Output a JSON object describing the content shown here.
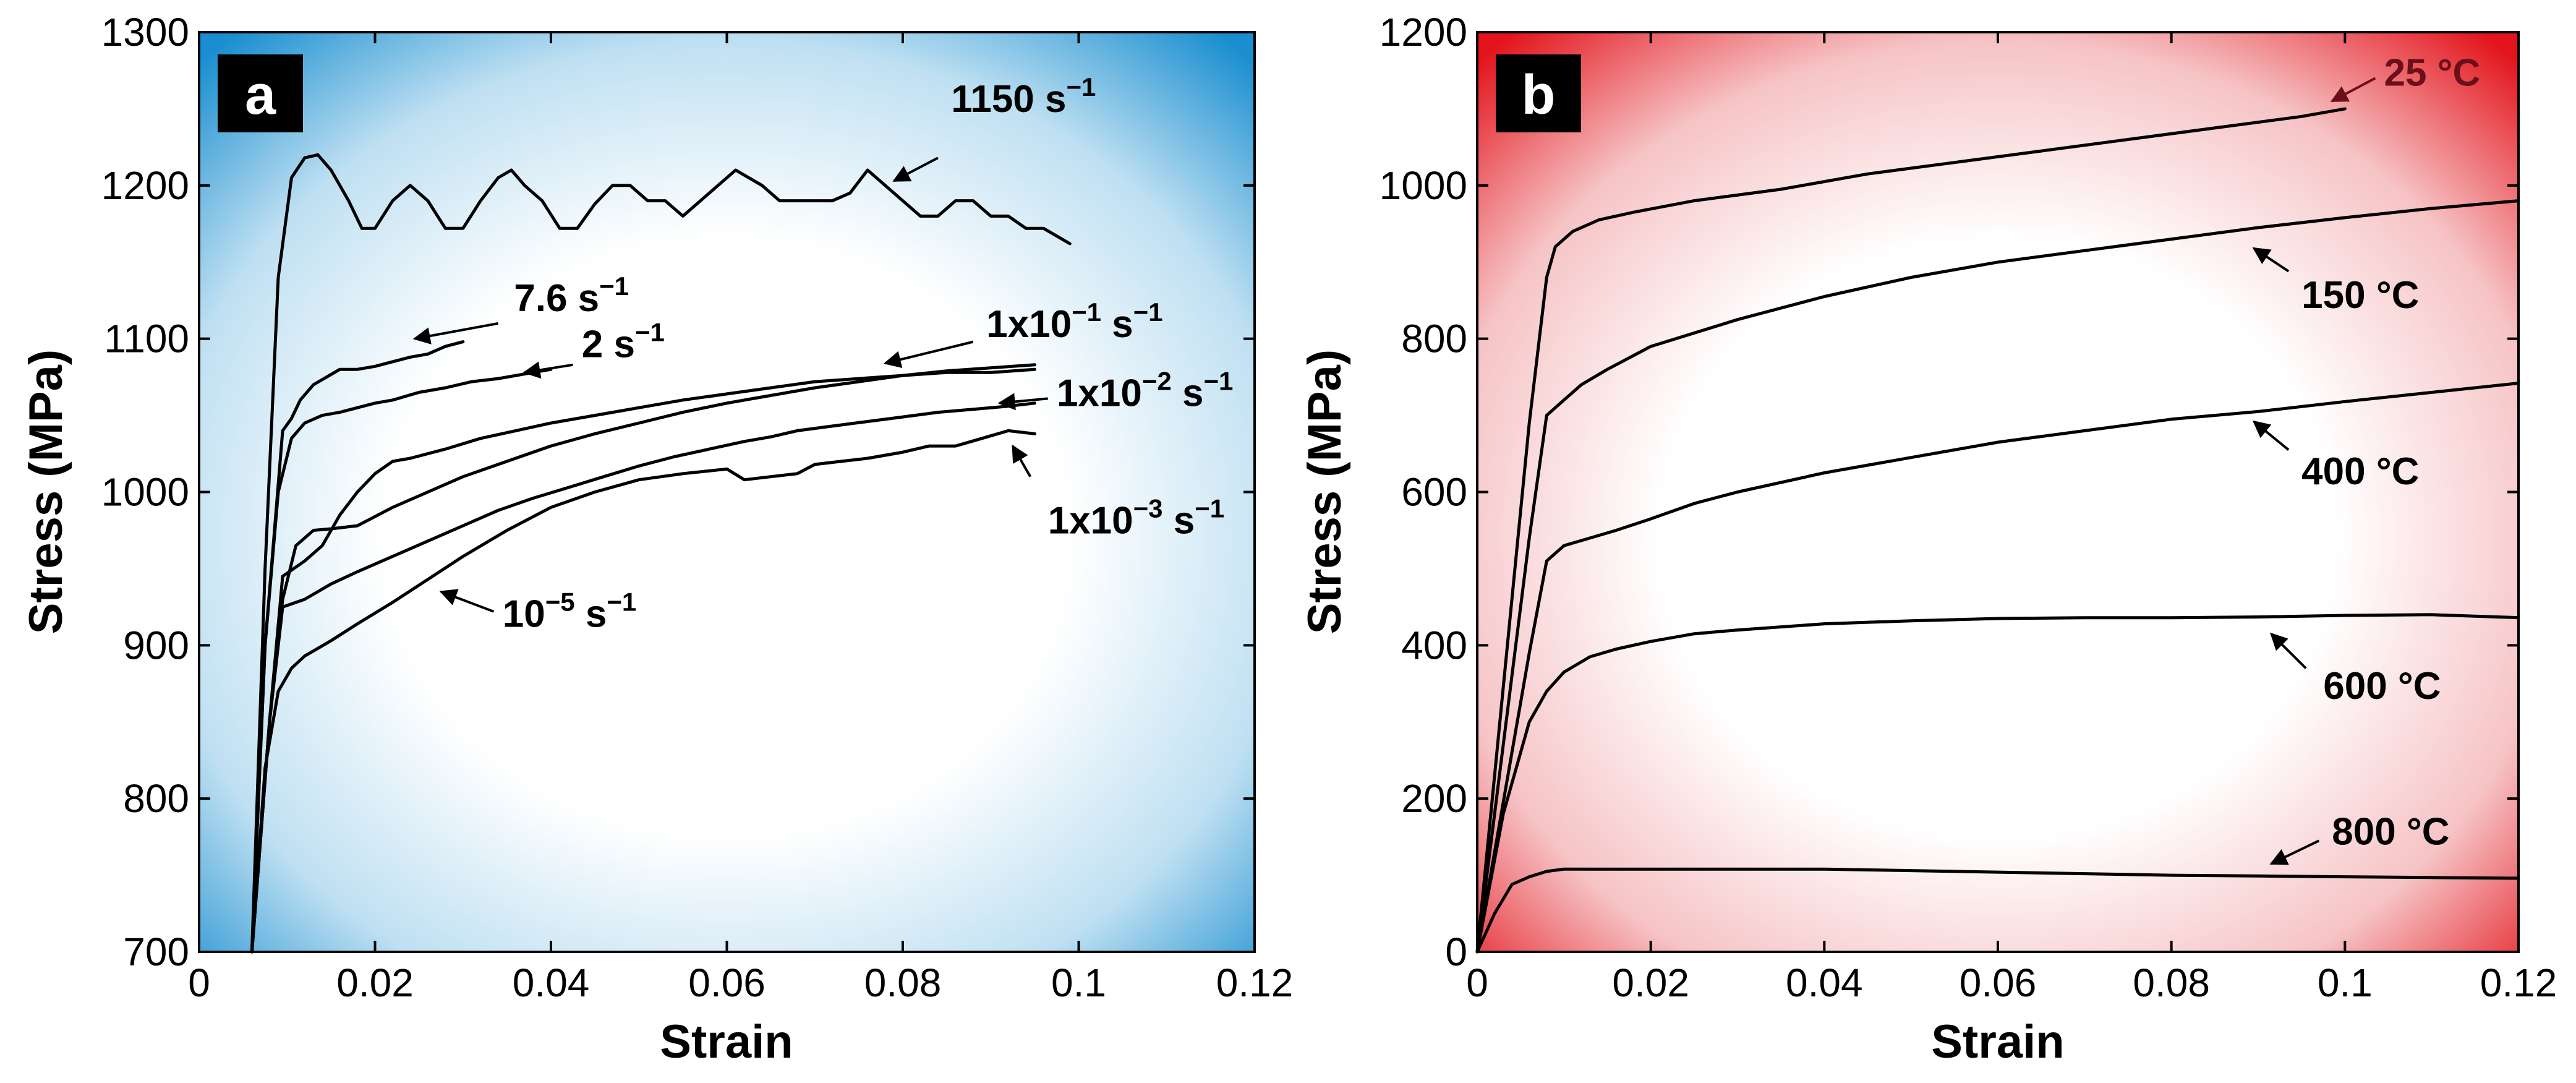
{
  "chart_data": [
    {
      "type": "line",
      "panel_label": "a",
      "xlabel": "Strain",
      "ylabel": "Stress (MPa)",
      "xlim": [
        0,
        0.12
      ],
      "ylim": [
        700,
        1300
      ],
      "xticks": [
        0,
        0.02,
        0.04,
        0.06,
        0.08,
        0.1,
        0.12
      ],
      "xtick_labels": [
        "0",
        "0.02",
        "0.04",
        "0.06",
        "0.08",
        "0.1",
        "0.12"
      ],
      "yticks": [
        700,
        800,
        900,
        1000,
        1100,
        1200,
        1300
      ],
      "ytick_labels": [
        "700",
        "800",
        "900",
        "1000",
        "1100",
        "1200",
        "1300"
      ],
      "background": {
        "style": "radial-gradient",
        "center": "#ffffff",
        "edge": "#1a8ed0"
      },
      "series": [
        {
          "annotation": {
            "base": "1150 s",
            "exp": "−1",
            "text_at": [
              0.0855,
              1248
            ],
            "arrow_from": [
              0.084,
              1218
            ],
            "arrow_to": [
              0.079,
              1203
            ]
          },
          "x": [
            0.006,
            0.0075,
            0.009,
            0.0105,
            0.012,
            0.0135,
            0.015,
            0.017,
            0.0185,
            0.02,
            0.022,
            0.024,
            0.026,
            0.028,
            0.03,
            0.032,
            0.034,
            0.0355,
            0.037,
            0.039,
            0.041,
            0.043,
            0.045,
            0.047,
            0.049,
            0.051,
            0.053,
            0.055,
            0.057,
            0.059,
            0.061,
            0.0625,
            0.064,
            0.066,
            0.068,
            0.07,
            0.072,
            0.074,
            0.076,
            0.078,
            0.08,
            0.082,
            0.084,
            0.086,
            0.088,
            0.09,
            0.092,
            0.094,
            0.096,
            0.099
          ],
          "y": [
            700,
            950,
            1140,
            1205,
            1218,
            1220,
            1210,
            1190,
            1172,
            1172,
            1190,
            1200,
            1190,
            1172,
            1172,
            1190,
            1205,
            1210,
            1200,
            1190,
            1172,
            1172,
            1188,
            1200,
            1200,
            1190,
            1190,
            1180,
            1190,
            1200,
            1210,
            1205,
            1200,
            1190,
            1190,
            1190,
            1190,
            1195,
            1210,
            1200,
            1190,
            1180,
            1180,
            1190,
            1190,
            1180,
            1180,
            1172,
            1172,
            1162
          ]
        },
        {
          "annotation": {
            "base": "7.6 s",
            "exp": "−1",
            "text_at": [
              0.0358,
              1118
            ],
            "arrow_from": [
              0.034,
              1110
            ],
            "arrow_to": [
              0.0245,
              1100
            ]
          },
          "x": [
            0.006,
            0.0075,
            0.0095,
            0.0105,
            0.0115,
            0.013,
            0.0145,
            0.016,
            0.018,
            0.02,
            0.022,
            0.024,
            0.026,
            0.028,
            0.03
          ],
          "y": [
            700,
            900,
            1040,
            1048,
            1060,
            1070,
            1075,
            1080,
            1080,
            1082,
            1085,
            1088,
            1090,
            1095,
            1098
          ]
        },
        {
          "annotation": {
            "base": "2 s",
            "exp": "−1",
            "text_at": [
              0.0435,
              1088
            ],
            "arrow_from": [
              0.0425,
              1083
            ],
            "arrow_to": [
              0.037,
              1078
            ]
          },
          "x": [
            0.006,
            0.0075,
            0.009,
            0.0105,
            0.012,
            0.014,
            0.016,
            0.018,
            0.02,
            0.022,
            0.025,
            0.028,
            0.031,
            0.034,
            0.037,
            0.04
          ],
          "y": [
            700,
            900,
            1000,
            1035,
            1045,
            1050,
            1052,
            1055,
            1058,
            1060,
            1065,
            1068,
            1072,
            1074,
            1077,
            1080
          ]
        },
        {
          "annotation": {
            "base": "1x10",
            "exp": "−1",
            "suffix": " s",
            "exp2": "−1",
            "text_at": [
              0.0895,
              1101
            ],
            "arrow_from": [
              0.088,
              1098
            ],
            "arrow_to": [
              0.078,
              1084
            ]
          },
          "x": [
            0.006,
            0.008,
            0.0095,
            0.011,
            0.013,
            0.015,
            0.018,
            0.022,
            0.026,
            0.03,
            0.035,
            0.04,
            0.045,
            0.05,
            0.055,
            0.06,
            0.065,
            0.07,
            0.075,
            0.08,
            0.085,
            0.09,
            0.095
          ],
          "y": [
            700,
            850,
            930,
            965,
            975,
            976,
            978,
            990,
            1000,
            1010,
            1020,
            1030,
            1038,
            1045,
            1052,
            1058,
            1063,
            1068,
            1072,
            1076,
            1079,
            1081,
            1083
          ]
        },
        {
          "annotation": {
            "base": "1x10",
            "exp": "−2",
            "suffix": " s",
            "exp2": "−1",
            "text_at": [
              0.0975,
              1056
            ],
            "arrow_from": [
              0.0965,
              1061
            ],
            "arrow_to": [
              0.091,
              1058
            ]
          },
          "x": [
            0.006,
            0.008,
            0.0095,
            0.012,
            0.014,
            0.016,
            0.018,
            0.02,
            0.022,
            0.024,
            0.028,
            0.032,
            0.036,
            0.04,
            0.045,
            0.05,
            0.055,
            0.06,
            0.065,
            0.07,
            0.075,
            0.08,
            0.085,
            0.09,
            0.095
          ],
          "y": [
            700,
            850,
            945,
            955,
            965,
            985,
            1000,
            1012,
            1020,
            1022,
            1028,
            1035,
            1040,
            1045,
            1050,
            1055,
            1060,
            1064,
            1068,
            1072,
            1074,
            1076,
            1078,
            1078,
            1080
          ]
        },
        {
          "annotation": {
            "base": "1x10",
            "exp": "−3",
            "suffix": " s",
            "exp2": "−1",
            "text_at": [
              0.0965,
              973
            ],
            "arrow_from": [
              0.0945,
              1010
            ],
            "arrow_to": [
              0.0925,
              1030
            ]
          },
          "x": [
            0.006,
            0.008,
            0.0095,
            0.012,
            0.015,
            0.018,
            0.022,
            0.026,
            0.03,
            0.034,
            0.038,
            0.042,
            0.046,
            0.05,
            0.054,
            0.058,
            0.062,
            0.065,
            0.068,
            0.072,
            0.076,
            0.08,
            0.084,
            0.088,
            0.092,
            0.095
          ],
          "y": [
            700,
            850,
            925,
            930,
            940,
            948,
            958,
            968,
            978,
            988,
            996,
            1003,
            1010,
            1017,
            1023,
            1028,
            1033,
            1036,
            1040,
            1043,
            1046,
            1049,
            1052,
            1054,
            1056,
            1058
          ]
        },
        {
          "annotation": {
            "base": "10",
            "exp": "−5",
            "suffix": " s",
            "exp2": "−1",
            "text_at": [
              0.0345,
              912
            ],
            "arrow_from": [
              0.0335,
              922
            ],
            "arrow_to": [
              0.0275,
              935
            ]
          },
          "x": [
            0.006,
            0.0075,
            0.009,
            0.0105,
            0.012,
            0.015,
            0.018,
            0.022,
            0.026,
            0.03,
            0.035,
            0.04,
            0.045,
            0.05,
            0.055,
            0.06,
            0.062,
            0.065,
            0.068,
            0.07,
            0.073,
            0.076,
            0.08,
            0.083,
            0.086,
            0.089,
            0.092,
            0.095
          ],
          "y": [
            700,
            820,
            870,
            885,
            893,
            903,
            914,
            928,
            943,
            958,
            975,
            990,
            1000,
            1008,
            1012,
            1015,
            1008,
            1010,
            1012,
            1018,
            1020,
            1022,
            1026,
            1030,
            1030,
            1035,
            1040,
            1038
          ]
        }
      ]
    },
    {
      "type": "line",
      "panel_label": "b",
      "xlabel": "Strain",
      "ylabel": "Stress (MPa)",
      "xlim": [
        0,
        0.12
      ],
      "ylim": [
        0,
        1200
      ],
      "xticks": [
        0,
        0.02,
        0.04,
        0.06,
        0.08,
        0.1,
        0.12
      ],
      "xtick_labels": [
        "0",
        "0.02",
        "0.04",
        "0.06",
        "0.08",
        "0.1",
        "0.12"
      ],
      "yticks": [
        0,
        200,
        400,
        600,
        800,
        1000,
        1200
      ],
      "ytick_labels": [
        "0",
        "200",
        "400",
        "600",
        "800",
        "1000",
        "1200"
      ],
      "background": {
        "style": "radial-gradient",
        "center": "#ffffff",
        "edge": "#e3141c"
      },
      "series": [
        {
          "annotation": {
            "base": "25 °C",
            "text_at": [
              0.1045,
              1130
            ],
            "arrow_from": [
              0.1035,
              1140
            ],
            "arrow_to": [
              0.0985,
              1110
            ],
            "color": "#6b0f1a"
          },
          "x": [
            0,
            0.002,
            0.004,
            0.006,
            0.008,
            0.009,
            0.011,
            0.014,
            0.018,
            0.025,
            0.035,
            0.045,
            0.055,
            0.065,
            0.075,
            0.085,
            0.095,
            0.1
          ],
          "y": [
            0,
            230,
            460,
            690,
            880,
            920,
            940,
            955,
            965,
            980,
            995,
            1015,
            1030,
            1045,
            1060,
            1075,
            1090,
            1100
          ]
        },
        {
          "annotation": {
            "base": "150 °C",
            "text_at": [
              0.095,
              840
            ],
            "arrow_from": [
              0.0935,
              888
            ],
            "arrow_to": [
              0.0895,
              918
            ]
          },
          "x": [
            0,
            0.002,
            0.004,
            0.006,
            0.008,
            0.01,
            0.012,
            0.015,
            0.02,
            0.03,
            0.04,
            0.05,
            0.06,
            0.07,
            0.08,
            0.09,
            0.1,
            0.11,
            0.12
          ],
          "y": [
            0,
            180,
            360,
            540,
            700,
            720,
            740,
            760,
            790,
            825,
            855,
            880,
            900,
            915,
            930,
            945,
            958,
            970,
            980
          ]
        },
        {
          "annotation": {
            "base": "400 °C",
            "text_at": [
              0.095,
              610
            ],
            "arrow_from": [
              0.0935,
              655
            ],
            "arrow_to": [
              0.0895,
              692
            ]
          },
          "x": [
            0,
            0.002,
            0.004,
            0.006,
            0.008,
            0.01,
            0.013,
            0.016,
            0.02,
            0.025,
            0.03,
            0.04,
            0.05,
            0.06,
            0.07,
            0.08,
            0.09,
            0.1,
            0.11,
            0.12
          ],
          "y": [
            0,
            130,
            260,
            390,
            510,
            530,
            540,
            550,
            565,
            585,
            600,
            625,
            645,
            665,
            680,
            695,
            705,
            718,
            730,
            742
          ]
        },
        {
          "annotation": {
            "base": "600 °C",
            "text_at": [
              0.0975,
              330
            ],
            "arrow_from": [
              0.0955,
              370
            ],
            "arrow_to": [
              0.0915,
              415
            ]
          },
          "x": [
            0,
            0.003,
            0.006,
            0.008,
            0.01,
            0.013,
            0.016,
            0.02,
            0.025,
            0.03,
            0.04,
            0.05,
            0.06,
            0.07,
            0.08,
            0.09,
            0.1,
            0.11,
            0.12
          ],
          "y": [
            0,
            180,
            300,
            340,
            365,
            385,
            395,
            405,
            415,
            420,
            428,
            432,
            435,
            436,
            436,
            437,
            439,
            440,
            436
          ]
        },
        {
          "annotation": {
            "base": "800 °C",
            "text_at": [
              0.0985,
              140
            ],
            "arrow_from": [
              0.097,
              145
            ],
            "arrow_to": [
              0.0915,
              115
            ]
          },
          "x": [
            0,
            0.002,
            0.004,
            0.006,
            0.008,
            0.01,
            0.015,
            0.02,
            0.03,
            0.04,
            0.05,
            0.06,
            0.07,
            0.08,
            0.09,
            0.1,
            0.11,
            0.12
          ],
          "y": [
            0,
            50,
            88,
            98,
            105,
            108,
            108,
            108,
            108,
            108,
            106,
            104,
            102,
            100,
            99,
            98,
            97,
            96
          ]
        }
      ]
    }
  ]
}
